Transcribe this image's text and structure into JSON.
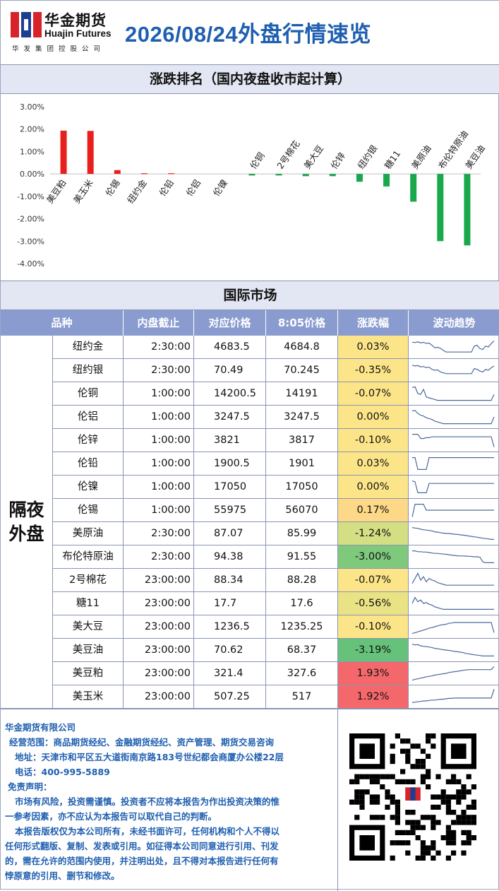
{
  "header": {
    "brand_cn": "华金期货",
    "brand_en": "Huajin Futures",
    "brand_sub": "华发集团控股公司",
    "report_title": "2026/08/24外盘行情速览"
  },
  "ranking": {
    "title": "涨跌排名（国内夜盘收市起计算）"
  },
  "chart_data": {
    "type": "bar",
    "title": "涨跌排名（国内夜盘收市起计算）",
    "categories": [
      "美豆粕",
      "美玉米",
      "伦锡",
      "纽约金",
      "伦铅",
      "伦铝",
      "伦镍",
      "伦铜",
      "2号棉花",
      "美大豆",
      "伦锌",
      "纽约银",
      "糖11",
      "美原油",
      "布伦特原油",
      "美豆油"
    ],
    "values": [
      1.93,
      1.92,
      0.17,
      0.03,
      0.03,
      0.0,
      0.0,
      -0.07,
      -0.07,
      -0.1,
      -0.1,
      -0.35,
      -0.56,
      -1.24,
      -3.0,
      -3.19
    ],
    "ylim": [
      -4.0,
      3.0
    ],
    "yticks": [
      "3.00%",
      "2.00%",
      "1.00%",
      "0.00%",
      "-1.00%",
      "-2.00%",
      "-3.00%",
      "-4.00%"
    ],
    "ytick_values": [
      3,
      2,
      1,
      0,
      -1,
      -2,
      -3,
      -4
    ],
    "colors": {
      "positive": "#e8201d",
      "negative": "#1aa84d",
      "axis": "#bfbfbf"
    },
    "grid": false
  },
  "intl": {
    "title": "国际市场",
    "headers": [
      "品种",
      "内盘截止",
      "对应价格",
      "8:05价格",
      "涨跌幅",
      "波动趋势"
    ],
    "side_label_line1": "隔夜",
    "side_label_line2": "外盘",
    "rows": [
      {
        "name": "纽约金",
        "close": "2:30:00",
        "corr": "4683.5",
        "p805": "4684.8",
        "chg": "0.03%",
        "chg_value": 0.03,
        "bg": "#fce588",
        "trend": [
          0.78,
          0.76,
          0.8,
          0.74,
          0.77,
          0.71,
          0.73,
          0.6,
          0.45,
          0.48,
          0.42,
          0.3,
          0.2,
          0.2,
          0.2,
          0.2,
          0.2,
          0.2,
          0.2,
          0.2,
          0.2,
          0.2,
          0.55,
          0.6,
          0.4,
          0.35,
          0.55,
          0.5,
          0.7,
          0.85
        ]
      },
      {
        "name": "纽约银",
        "close": "2:30:00",
        "corr": "70.49",
        "p805": "70.245",
        "chg": "-0.35%",
        "chg_value": -0.35,
        "bg": "#fce588",
        "trend": [
          0.8,
          0.75,
          0.78,
          0.7,
          0.72,
          0.65,
          0.68,
          0.55,
          0.5,
          0.52,
          0.4,
          0.35,
          0.3,
          0.3,
          0.3,
          0.3,
          0.3,
          0.3,
          0.3,
          0.3,
          0.3,
          0.3,
          0.6,
          0.55,
          0.45,
          0.4,
          0.55,
          0.5,
          0.65,
          0.75
        ]
      },
      {
        "name": "伦铜",
        "close": "1:00:00",
        "corr": "14200.5",
        "p805": "14191",
        "chg": "-0.07%",
        "chg_value": -0.07,
        "bg": "#fce588",
        "trend": [
          0.85,
          0.9,
          0.5,
          0.45,
          0.75,
          0.3,
          0.25,
          0.2,
          0.15,
          0.1,
          0.1,
          0.1,
          0.1,
          0.1,
          0.1,
          0.1,
          0.1,
          0.1,
          0.1,
          0.1,
          0.1,
          0.1,
          0.1,
          0.1,
          0.1,
          0.1,
          0.1,
          0.1,
          0.1,
          0.45
        ]
      },
      {
        "name": "伦铝",
        "close": "1:00:00",
        "corr": "3247.5",
        "p805": "3247.5",
        "chg": "0.00%",
        "chg_value": 0.0,
        "bg": "#fce588",
        "trend": [
          0.85,
          0.88,
          0.7,
          0.6,
          0.55,
          0.45,
          0.4,
          0.35,
          0.25,
          0.2,
          0.15,
          0.1,
          0.1,
          0.1,
          0.1,
          0.1,
          0.1,
          0.1,
          0.1,
          0.1,
          0.1,
          0.1,
          0.1,
          0.1,
          0.1,
          0.1,
          0.1,
          0.1,
          0.1,
          0.5
        ]
      },
      {
        "name": "伦锌",
        "close": "1:00:00",
        "corr": "3821",
        "p805": "3817",
        "chg": "-0.10%",
        "chg_value": -0.1,
        "bg": "#fce588",
        "trend": [
          0.85,
          0.85,
          0.85,
          0.6,
          0.6,
          0.65,
          0.65,
          0.7,
          0.7,
          0.7,
          0.7,
          0.7,
          0.7,
          0.7,
          0.7,
          0.7,
          0.7,
          0.7,
          0.7,
          0.7,
          0.7,
          0.7,
          0.7,
          0.7,
          0.7,
          0.7,
          0.7,
          0.7,
          0.7,
          0.1
        ]
      },
      {
        "name": "伦铅",
        "close": "1:00:00",
        "corr": "1900.5",
        "p805": "1901",
        "chg": "0.03%",
        "chg_value": 0.03,
        "bg": "#fce588",
        "trend": [
          0.85,
          0.85,
          0.15,
          0.15,
          0.15,
          0.15,
          0.85,
          0.85,
          0.85,
          0.85,
          0.85,
          0.85,
          0.85,
          0.85,
          0.85,
          0.85,
          0.85,
          0.85,
          0.85,
          0.85,
          0.85,
          0.85,
          0.85,
          0.85,
          0.85,
          0.85,
          0.85,
          0.85,
          0.85,
          0.85
        ]
      },
      {
        "name": "伦镍",
        "close": "1:00:00",
        "corr": "17050",
        "p805": "17050",
        "chg": "0.00%",
        "chg_value": 0.0,
        "bg": "#fce588",
        "trend": [
          0.85,
          0.8,
          0.15,
          0.15,
          0.15,
          0.15,
          0.7,
          0.7,
          0.7,
          0.7,
          0.7,
          0.7,
          0.7,
          0.7,
          0.7,
          0.7,
          0.7,
          0.7,
          0.7,
          0.7,
          0.7,
          0.7,
          0.7,
          0.7,
          0.7,
          0.7,
          0.7,
          0.7,
          0.7,
          0.7
        ]
      },
      {
        "name": "伦锡",
        "close": "1:00:00",
        "corr": "55975",
        "p805": "56070",
        "chg": "0.17%",
        "chg_value": 0.17,
        "bg": "#fcd887",
        "trend": [
          0.1,
          0.85,
          0.85,
          0.85,
          0.85,
          0.5,
          0.5,
          0.5,
          0.5,
          0.5,
          0.5,
          0.5,
          0.5,
          0.5,
          0.5,
          0.5,
          0.5,
          0.5,
          0.5,
          0.5,
          0.5,
          0.5,
          0.5,
          0.5,
          0.5,
          0.5,
          0.5,
          0.5,
          0.5,
          0.5
        ]
      },
      {
        "name": "美原油",
        "close": "2:30:00",
        "corr": "87.07",
        "p805": "85.99",
        "chg": "-1.24%",
        "chg_value": -1.24,
        "bg": "#d4de82",
        "trend": [
          0.85,
          0.82,
          0.8,
          0.75,
          0.72,
          0.7,
          0.68,
          0.65,
          0.6,
          0.58,
          0.55,
          0.52,
          0.5,
          0.5,
          0.48,
          0.46,
          0.44,
          0.42,
          0.4,
          0.38,
          0.35,
          0.33,
          0.3,
          0.28,
          0.25,
          0.22,
          0.2,
          0.18,
          0.15,
          0.15
        ]
      },
      {
        "name": "布伦特原油",
        "close": "2:30:00",
        "corr": "94.38",
        "p805": "91.55",
        "chg": "-3.00%",
        "chg_value": -3.0,
        "bg": "#7fc97d",
        "trend": [
          0.85,
          0.85,
          0.8,
          0.8,
          0.78,
          0.78,
          0.75,
          0.72,
          0.7,
          0.7,
          0.68,
          0.66,
          0.65,
          0.62,
          0.6,
          0.58,
          0.56,
          0.55,
          0.55,
          0.54,
          0.53,
          0.52,
          0.5,
          0.5,
          0.48,
          0.2,
          0.15,
          0.15,
          0.15,
          0.15
        ]
      },
      {
        "name": "2号棉花",
        "close": "23:00:00",
        "corr": "88.34",
        "p805": "88.28",
        "chg": "-0.07%",
        "chg_value": -0.07,
        "bg": "#fce588",
        "trend": [
          0.3,
          0.6,
          0.9,
          0.5,
          0.7,
          0.4,
          0.6,
          0.5,
          0.45,
          0.35,
          0.3,
          0.25,
          0.2,
          0.2,
          0.2,
          0.2,
          0.2,
          0.2,
          0.2,
          0.2,
          0.2,
          0.2,
          0.2,
          0.2,
          0.2,
          0.2,
          0.2,
          0.2,
          0.2,
          0.2
        ]
      },
      {
        "name": "糖11",
        "close": "23:00:00",
        "corr": "17.7",
        "p805": "17.6",
        "chg": "-0.56%",
        "chg_value": -0.56,
        "bg": "#e9e385",
        "trend": [
          0.5,
          0.85,
          0.6,
          0.7,
          0.5,
          0.55,
          0.45,
          0.4,
          0.3,
          0.25,
          0.2,
          0.15,
          0.15,
          0.15,
          0.15,
          0.15,
          0.15,
          0.15,
          0.15,
          0.15,
          0.15,
          0.15,
          0.15,
          0.15,
          0.15,
          0.15,
          0.15,
          0.15,
          0.15,
          0.15
        ]
      },
      {
        "name": "美大豆",
        "close": "23:00:00",
        "corr": "1236.5",
        "p805": "1235.25",
        "chg": "-0.10%",
        "chg_value": -0.1,
        "bg": "#fce588",
        "trend": [
          0.1,
          0.15,
          0.2,
          0.25,
          0.3,
          0.35,
          0.42,
          0.45,
          0.5,
          0.55,
          0.6,
          0.62,
          0.65,
          0.7,
          0.72,
          0.75,
          0.75,
          0.75,
          0.75,
          0.75,
          0.75,
          0.75,
          0.75,
          0.75,
          0.75,
          0.75,
          0.75,
          0.75,
          0.75,
          0.15
        ]
      },
      {
        "name": "美豆油",
        "close": "23:00:00",
        "corr": "70.62",
        "p805": "68.37",
        "chg": "-3.19%",
        "chg_value": -3.19,
        "bg": "#66c17a",
        "trend": [
          0.85,
          0.8,
          0.82,
          0.75,
          0.72,
          0.7,
          0.68,
          0.65,
          0.6,
          0.58,
          0.55,
          0.52,
          0.5,
          0.48,
          0.45,
          0.42,
          0.4,
          0.38,
          0.35,
          0.3,
          0.28,
          0.25,
          0.22,
          0.2,
          0.18,
          0.15,
          0.15,
          0.15,
          0.15,
          0.15
        ]
      },
      {
        "name": "美豆粕",
        "close": "23:00:00",
        "corr": "321.4",
        "p805": "327.6",
        "chg": "1.93%",
        "chg_value": 1.93,
        "bg": "#f4686b",
        "trend": [
          0.1,
          0.15,
          0.18,
          0.22,
          0.25,
          0.3,
          0.32,
          0.35,
          0.4,
          0.42,
          0.45,
          0.48,
          0.5,
          0.55,
          0.58,
          0.6,
          0.62,
          0.65,
          0.68,
          0.7,
          0.72,
          0.72,
          0.72,
          0.72,
          0.72,
          0.72,
          0.72,
          0.72,
          0.72,
          0.9
        ]
      },
      {
        "name": "美玉米",
        "close": "23:00:00",
        "corr": "507.25",
        "p805": "517",
        "chg": "1.92%",
        "chg_value": 1.92,
        "bg": "#f4686b",
        "trend": [
          0.15,
          0.18,
          0.2,
          0.22,
          0.25,
          0.25,
          0.28,
          0.3,
          0.3,
          0.32,
          0.35,
          0.35,
          0.38,
          0.4,
          0.4,
          0.42,
          0.42,
          0.42,
          0.42,
          0.42,
          0.42,
          0.42,
          0.42,
          0.42,
          0.42,
          0.42,
          0.42,
          0.42,
          0.42,
          0.95
        ]
      }
    ]
  },
  "footer": {
    "company": "华金期货有限公司",
    "scope": "经营范围：商品期货经纪、金融期货经纪、资产管理、期货交易咨询",
    "address": "地址：天津市和平区五大道街南京路183号世纪都会商厦办公楼22层",
    "phone": "电话：400-995-5889",
    "disclaimer_title": "免责声明：",
    "disclaimer_1a": "市场有风险，投资需谨慎。投资者不应将本报告为作出投资决策的惟",
    "disclaimer_1b": "一参考因素，亦不应认为本报告可以取代自己的判断。",
    "disclaimer_2a": "本报告版权仅为本公司所有，未经书面许可，任何机构和个人不得以",
    "disclaimer_2b": "任何形式翻版、复制、发表或引用。如征得本公司同意进行引用、刊发",
    "disclaimer_2c": "的，需在允许的范围内使用，并注明出处，且不得对本报告进行任何有",
    "disclaimer_2d": "悖原意的引用、删节和修改。"
  },
  "colors": {
    "title_blue": "#1f5fb0",
    "header_bar": "#e3e6f3",
    "table_head": "#8a9ccf",
    "trend_line": "#4a6a9a"
  }
}
